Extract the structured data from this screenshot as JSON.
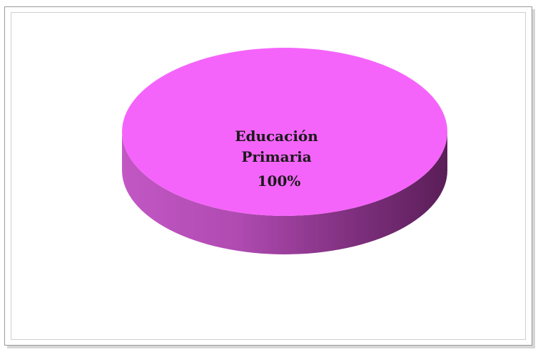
{
  "chart_data": {
    "type": "pie",
    "style": "3d",
    "slices": [
      {
        "label_lines": [
          "Educación",
          "Primaria"
        ],
        "value_label": "100%",
        "value": 100,
        "color": "#f564fa"
      }
    ]
  }
}
